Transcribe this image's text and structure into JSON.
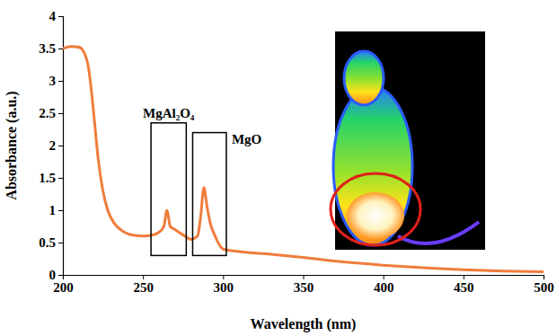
{
  "chart_data": {
    "type": "line",
    "x_label": "Wavelength (nm)",
    "y_label": "Absorbance (a.u.)",
    "x": [
      200,
      205,
      210,
      213,
      216,
      218,
      220,
      222,
      225,
      228,
      232,
      236,
      240,
      245,
      250,
      255,
      260,
      263,
      265,
      267,
      270,
      275,
      280,
      284,
      286,
      288,
      290,
      292,
      295,
      300,
      310,
      330,
      350,
      375,
      400,
      425,
      450,
      475,
      500
    ],
    "values": [
      3.5,
      3.53,
      3.52,
      3.45,
      3.2,
      2.8,
      2.3,
      1.8,
      1.3,
      1.0,
      0.8,
      0.7,
      0.64,
      0.61,
      0.6,
      0.61,
      0.66,
      0.75,
      1.0,
      0.75,
      0.7,
      0.62,
      0.55,
      0.6,
      0.9,
      1.35,
      1.05,
      0.8,
      0.6,
      0.4,
      0.36,
      0.32,
      0.27,
      0.2,
      0.15,
      0.11,
      0.08,
      0.06,
      0.05
    ],
    "color": "#f07c3c",
    "xlim": [
      200,
      500
    ],
    "xticks": [
      200,
      250,
      300,
      350,
      400,
      450,
      500
    ],
    "ylim": [
      0,
      4
    ],
    "yticks": [
      0,
      0.5,
      1,
      1.5,
      2,
      2.5,
      3,
      3.5,
      4
    ],
    "grid": false,
    "annotations": [
      {
        "text": "MgAl₂O₄",
        "x0": 255,
        "x1": 277,
        "y0": 0.3,
        "y1": 2.35
      },
      {
        "text": "MgO",
        "x0": 281,
        "x1": 302,
        "y0": 0.3,
        "y1": 2.2
      }
    ]
  }
}
